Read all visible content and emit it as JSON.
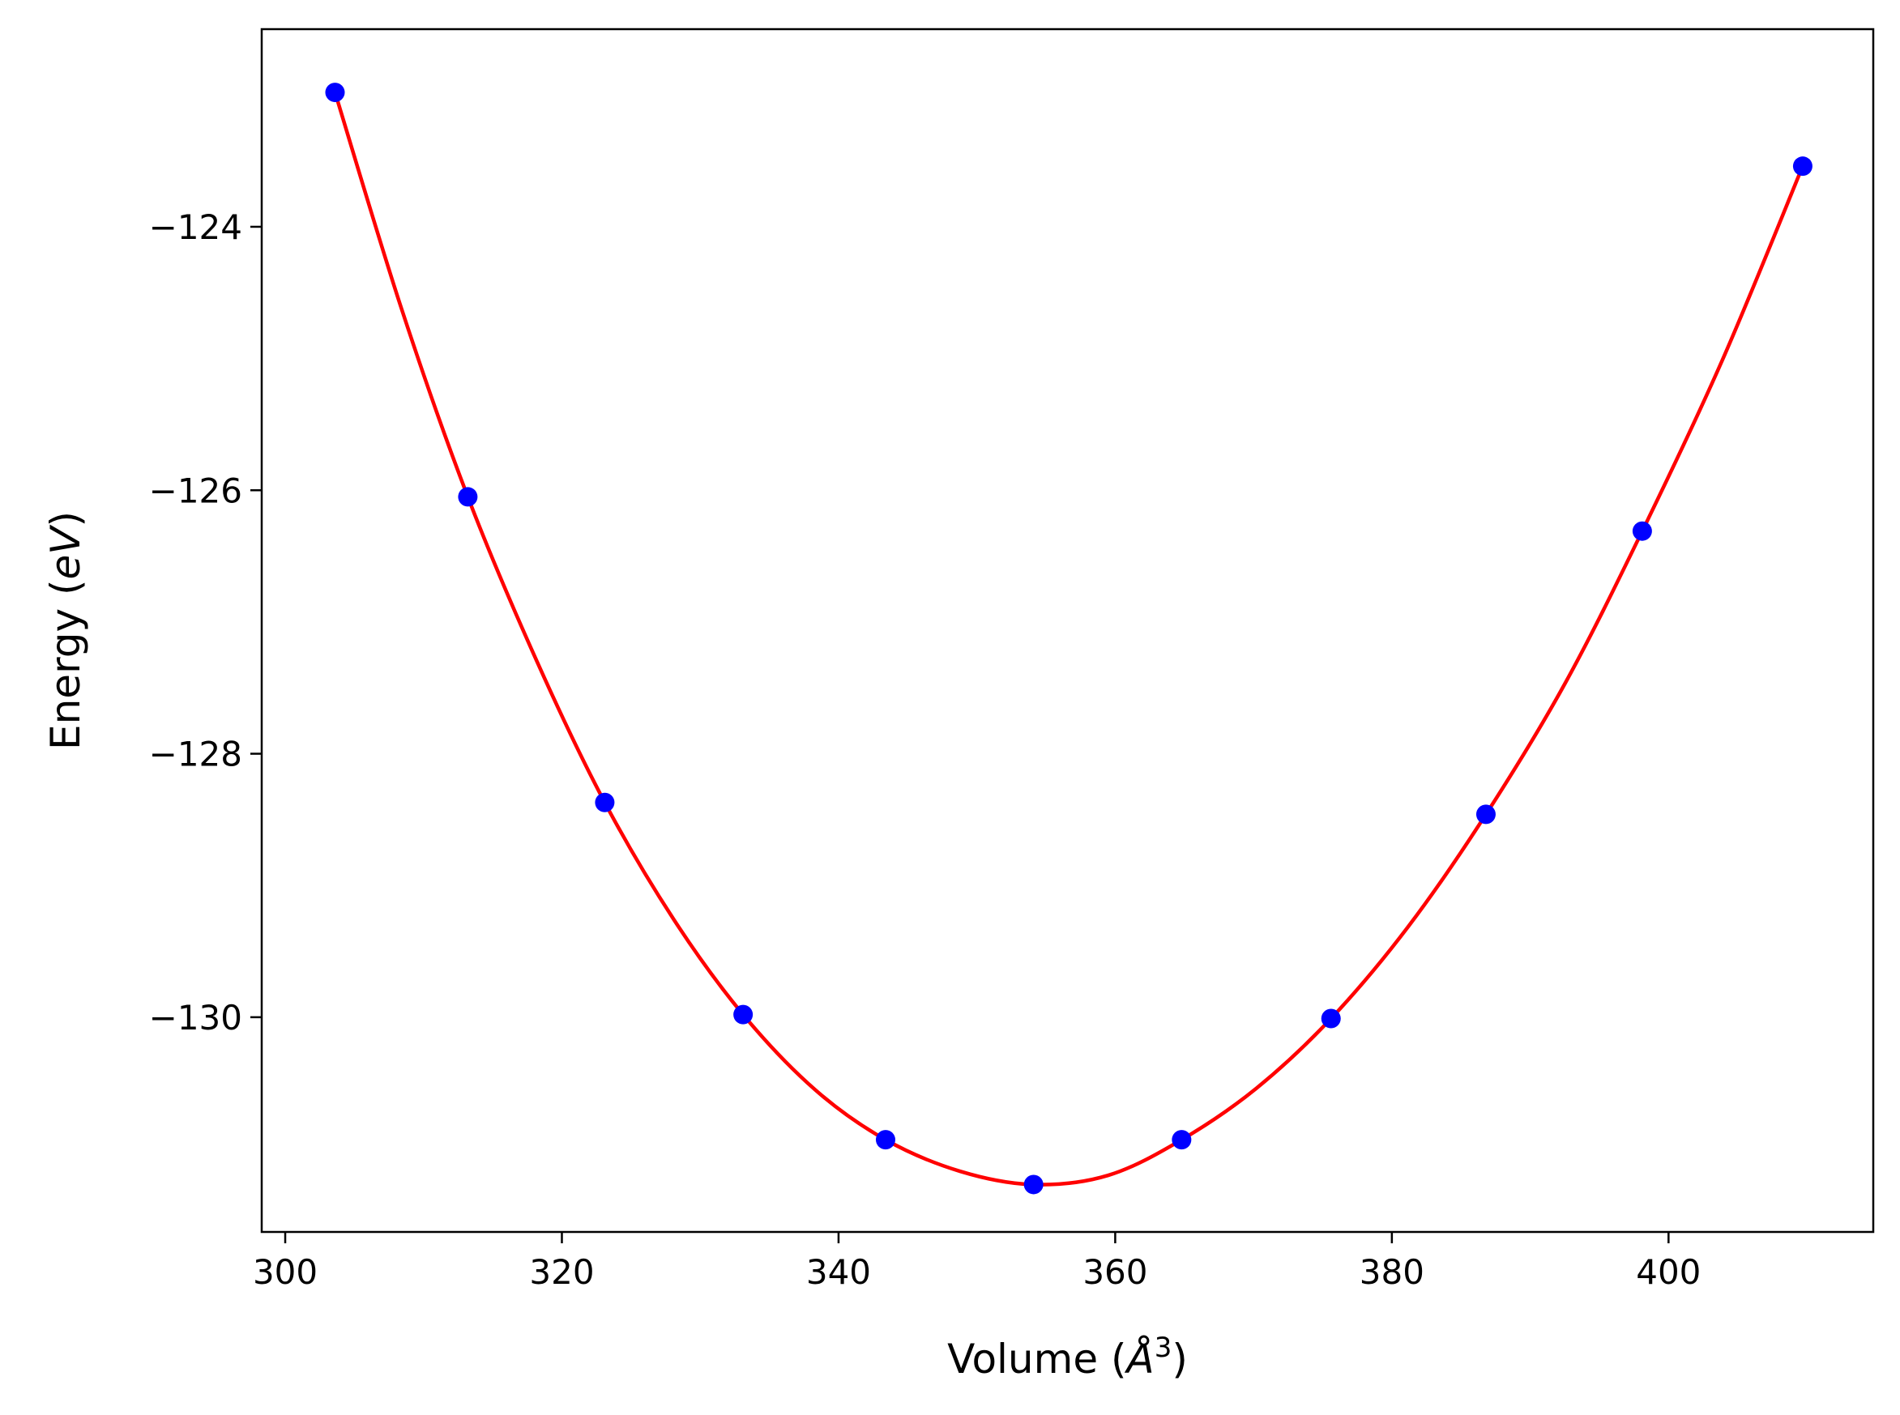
{
  "chart_data": {
    "type": "scatter",
    "title": "",
    "xlabel_prefix": "Volume (",
    "xlabel_unit": "Å",
    "xlabel_exp": "3",
    "xlabel_suffix": ")",
    "ylabel_prefix": "Energy (",
    "ylabel_unit": "eV",
    "ylabel_suffix": ")",
    "xlim": [
      298.3,
      414.8
    ],
    "ylim": [
      -131.63,
      -122.5
    ],
    "xticks": [
      300,
      320,
      340,
      360,
      380,
      400
    ],
    "xtick_labels": [
      "300",
      "320",
      "340",
      "360",
      "380",
      "400"
    ],
    "yticks": [
      -124,
      -126,
      -128,
      -130
    ],
    "ytick_labels": [
      "−124",
      "−126",
      "−128",
      "−130"
    ],
    "grid": false,
    "legend": false,
    "series": [
      {
        "marker": "circle",
        "color": "#0000ff",
        "x": [
          303.6,
          313.2,
          323.1,
          333.1,
          343.4,
          354.1,
          364.8,
          375.6,
          386.8,
          398.1,
          409.7
        ],
        "y": [
          -122.98,
          -126.05,
          -128.37,
          -129.98,
          -130.93,
          -131.27,
          -130.93,
          -130.01,
          -128.46,
          -126.31,
          -123.54
        ]
      }
    ],
    "fit_curve": {
      "color": "#ff0000",
      "type": "line",
      "x": [
        303.6,
        308.4,
        313.2,
        318.2,
        323.1,
        328.1,
        333.1,
        338.3,
        343.4,
        348.8,
        354.1,
        359.5,
        364.8,
        370.2,
        375.6,
        381.2,
        386.8,
        392.5,
        398.1,
        403.9,
        409.7
      ],
      "y": [
        -122.98,
        -124.62,
        -126.05,
        -127.3,
        -128.37,
        -129.26,
        -129.98,
        -130.55,
        -130.93,
        -131.17,
        -131.27,
        -131.2,
        -130.93,
        -130.54,
        -130.01,
        -129.31,
        -128.46,
        -127.47,
        -126.31,
        -125.01,
        -123.54
      ]
    }
  }
}
